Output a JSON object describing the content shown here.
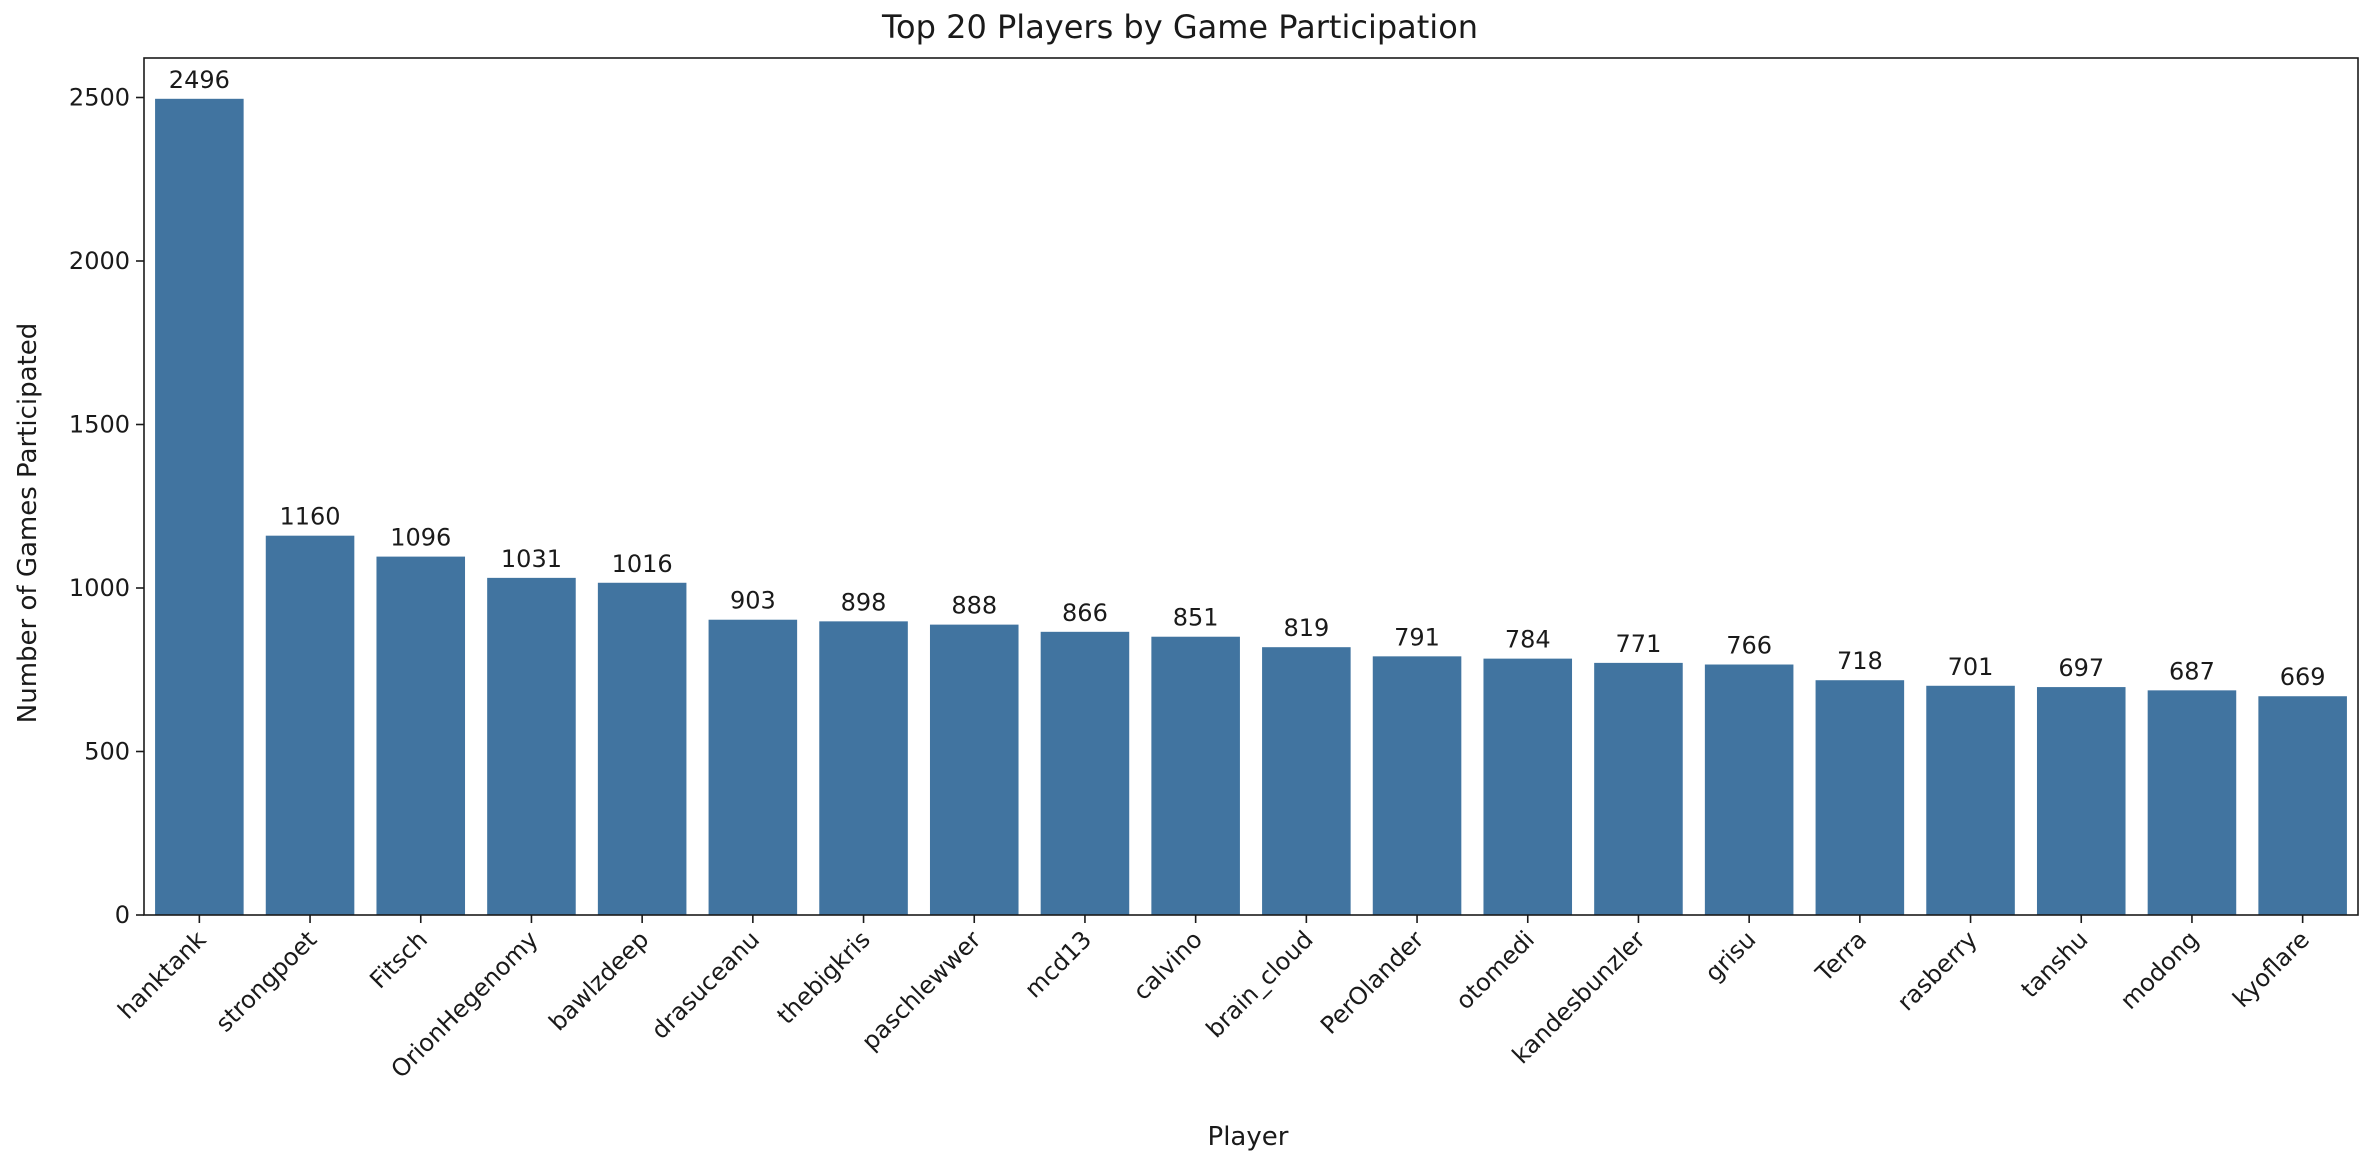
{
  "chart_data": {
    "type": "bar",
    "title": "Top 20 Players by Game Participation",
    "xlabel": "Player",
    "ylabel": "Number of Games Participated",
    "categories": [
      "hanktank",
      "strongpoet",
      "Fitsch",
      "OrionHegenomy",
      "bawlzdeep",
      "drasuceanu",
      "thebigkris",
      "paschlewwer",
      "mcd13",
      "calvino",
      "brain_cloud",
      "PerOlander",
      "otomedi",
      "kandesbunzler",
      "grisu",
      "Terra",
      "rasberry",
      "tanshu",
      "modong",
      "kyoflare"
    ],
    "values": [
      2496,
      1160,
      1096,
      1031,
      1016,
      903,
      898,
      888,
      866,
      851,
      819,
      791,
      784,
      771,
      766,
      718,
      701,
      697,
      687,
      669
    ],
    "data_labels": [
      "2496",
      "1160",
      "1096",
      "1031",
      "1016",
      "903",
      "898",
      "888",
      "866",
      "851",
      "819",
      "791",
      "784",
      "771",
      "766",
      "718",
      "701",
      "697",
      "687",
      "669"
    ],
    "yticks": [
      0,
      500,
      1000,
      1500,
      2000,
      2500
    ],
    "ylim": [
      0,
      2620.8
    ],
    "grid": false,
    "legend": "none",
    "colors": {
      "bar": "#4174a0",
      "axis": "#1a1a1a",
      "background": "#ffffff"
    }
  }
}
